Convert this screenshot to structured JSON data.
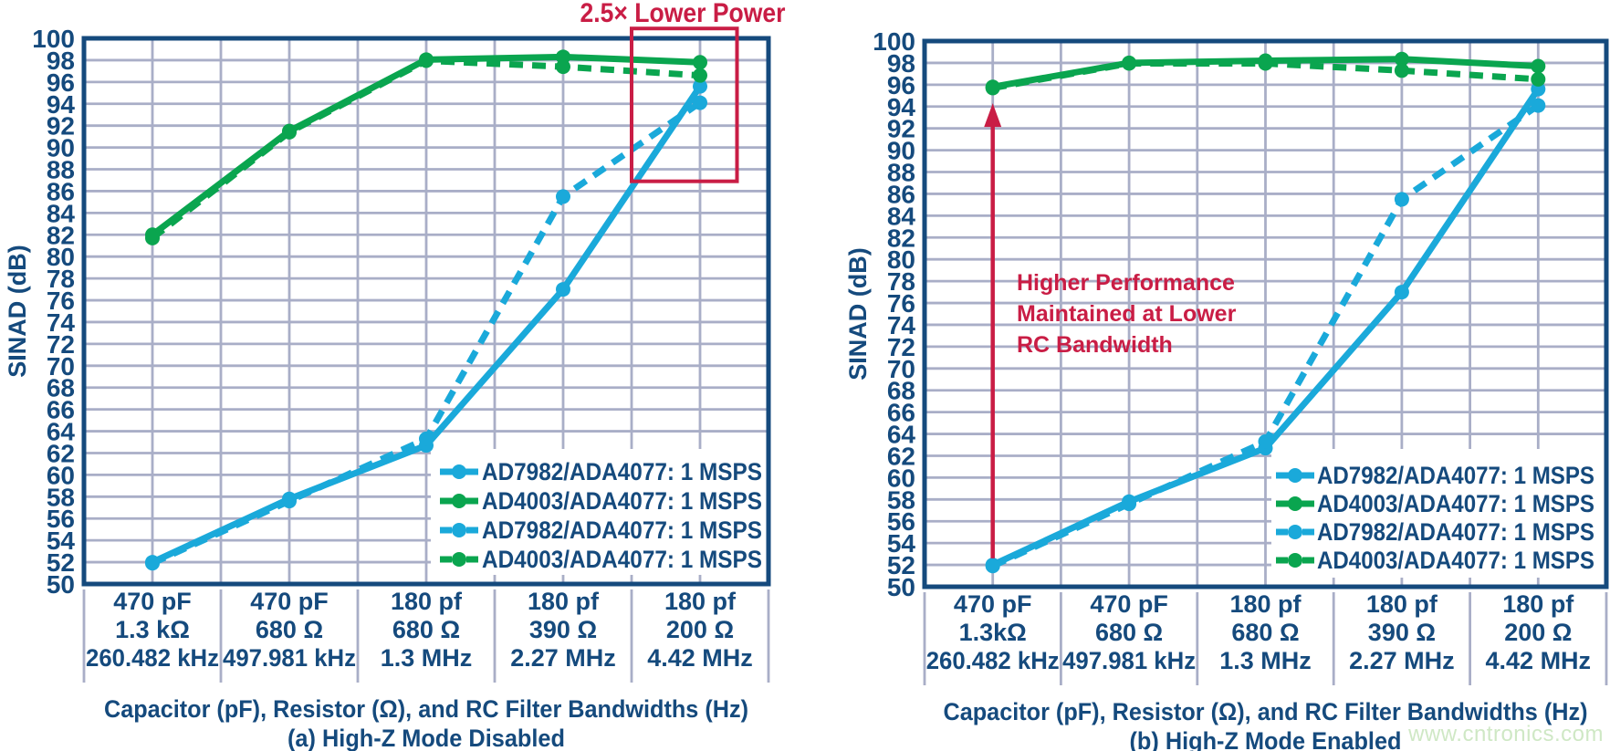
{
  "watermark": "www.cntronics.com",
  "colors": {
    "background": "#ffffff",
    "navy": "#154a7d",
    "grid": "#a9aec7",
    "cyan": "#1aa9da",
    "green": "#0aa54f",
    "red": "#c91d45",
    "legend_bg": "#ffffff",
    "watermark_green": "#cfe8c5"
  },
  "chart_data": [
    {
      "type": "line",
      "caption": "(a) High-Z Mode Disabled",
      "xlabel": "Capacitor (pF), Resistor (Ω), and RC Filter Bandwidths (Hz)",
      "ylabel": "SINAD (dB)",
      "ylim": [
        50,
        100
      ],
      "ytick_step": 2,
      "grid": true,
      "legend_position": "bottom-right",
      "categories": [
        [
          "470 pF",
          "1.3 kΩ",
          "260.482 kHz"
        ],
        [
          "470 pF",
          "680 Ω",
          "497.981 kHz"
        ],
        [
          "180 pf",
          "680 Ω",
          "1.3 MHz"
        ],
        [
          "180 pf",
          "390 Ω",
          "2.27 MHz"
        ],
        [
          "180 pf",
          "200 Ω",
          "4.42 MHz"
        ]
      ],
      "series": [
        {
          "name": "AD7982/ADA4077: 1 MSPS",
          "color": "cyan",
          "dashed": false,
          "values": [
            52,
            57.8,
            62.7,
            77,
            95.6
          ]
        },
        {
          "name": "AD4003/ADA4077: 1 MSPS",
          "color": "green",
          "dashed": false,
          "values": [
            82,
            91.5,
            98.05,
            98.3,
            97.8
          ]
        },
        {
          "name": "AD7982/ADA4077: 1 MSPS",
          "color": "cyan",
          "dashed": true,
          "values": [
            51.9,
            57.6,
            63.3,
            85.5,
            94.1
          ]
        },
        {
          "name": "AD4003/ADA4077: 1 MSPS",
          "color": "green",
          "dashed": true,
          "values": [
            81.7,
            91.4,
            97.95,
            97.4,
            96.6
          ]
        }
      ],
      "annotations": {
        "title": "2.5× Lower Power",
        "box": {
          "cat_from": 4.0,
          "cat_to": 4.77,
          "db_top": 100.9,
          "db_bottom": 86.9
        }
      }
    },
    {
      "type": "line",
      "caption": "(b) High-Z Mode Enabled",
      "xlabel": "Capacitor (pF), Resistor (Ω), and RC Filter Bandwidths (Hz)",
      "ylabel": "SINAD (dB)",
      "ylim": [
        50,
        100
      ],
      "ytick_step": 2,
      "grid": true,
      "legend_position": "bottom-right",
      "categories": [
        [
          "470 pF",
          "1.3kΩ",
          "260.482 kHz"
        ],
        [
          "470 pF",
          "680 Ω",
          "497.981 kHz"
        ],
        [
          "180 pf",
          "680 Ω",
          "1.3 MHz"
        ],
        [
          "180 pf",
          "390 Ω",
          "2.27 MHz"
        ],
        [
          "180 pf",
          "200 Ω",
          "4.42 MHz"
        ]
      ],
      "series": [
        {
          "name": "AD7982/ADA4077: 1 MSPS",
          "color": "cyan",
          "dashed": false,
          "values": [
            52,
            57.8,
            62.7,
            77,
            95.6
          ]
        },
        {
          "name": "AD4003/ADA4077: 1 MSPS",
          "color": "green",
          "dashed": false,
          "values": [
            95.8,
            98.0,
            98.2,
            98.35,
            97.7
          ]
        },
        {
          "name": "AD7982/ADA4077: 1 MSPS",
          "color": "cyan",
          "dashed": true,
          "values": [
            51.9,
            57.6,
            63.3,
            85.5,
            94.1
          ]
        },
        {
          "name": "AD4003/ADA4077: 1 MSPS",
          "color": "green",
          "dashed": true,
          "values": [
            95.7,
            97.95,
            97.95,
            97.3,
            96.5
          ]
        }
      ],
      "annotations": {
        "arrow": {
          "cat": 0,
          "db_from": 52.6,
          "db_to": 94.3
        },
        "note": [
          "Higher Performance",
          "Maintained at Lower",
          "RC Bandwidth"
        ]
      }
    }
  ]
}
